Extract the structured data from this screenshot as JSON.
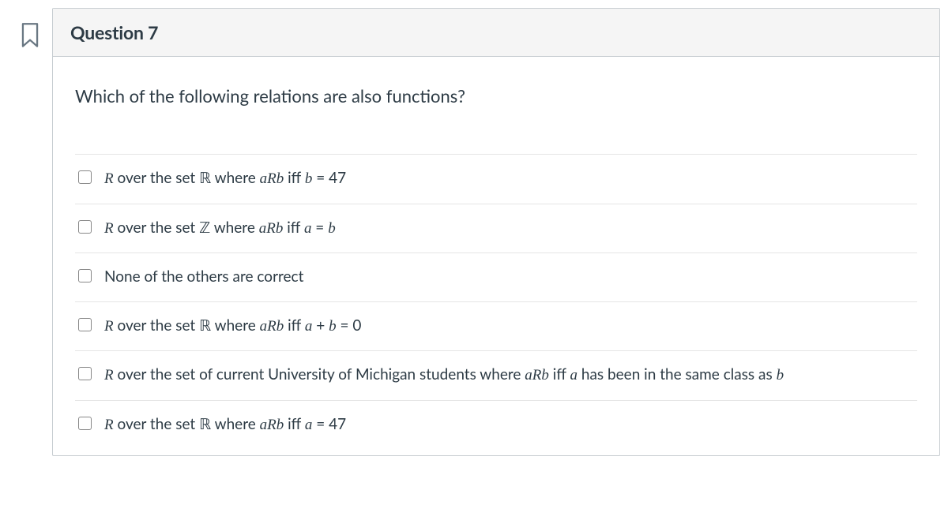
{
  "header": {
    "title": "Question 7"
  },
  "prompt": "Which of the following relations are also functions?",
  "options": [
    {
      "prefix": "R over the set ",
      "set": "ℝ",
      "mid": " where ",
      "rel": "aRb",
      "suffix": " iff ",
      "cond_html": "<span class='mi'>b</span> = 47"
    },
    {
      "prefix": "R over the set ",
      "set": "ℤ",
      "mid": " where ",
      "rel": "aRb",
      "suffix": " iff ",
      "cond_html": "<span class='mi'>a</span> = <span class='mi'>b</span>"
    },
    {
      "plain": "None of the others are correct"
    },
    {
      "prefix": "R over the set ",
      "set": "ℝ",
      "mid": " where ",
      "rel": "aRb",
      "suffix": " iff ",
      "cond_html": "<span class='mi'>a</span> + <span class='mi'>b</span> = 0"
    },
    {
      "prefix": "R over the set of current University of Michigan students where ",
      "rel": "aRb",
      "suffix": " iff ",
      "cond_html": "<span class='mi'>a</span> has been in the same class as <span class='mi'>b</span>"
    },
    {
      "prefix": "R over the set ",
      "set": "ℝ",
      "mid": " where ",
      "rel": "aRb",
      "suffix": " iff ",
      "cond_html": "<span class='mi'>a</span> = 47"
    }
  ],
  "colors": {
    "border": "#c7cdd1",
    "header_bg": "#f5f5f5",
    "divider": "#e5e5e5",
    "flag": "#6a7883"
  }
}
